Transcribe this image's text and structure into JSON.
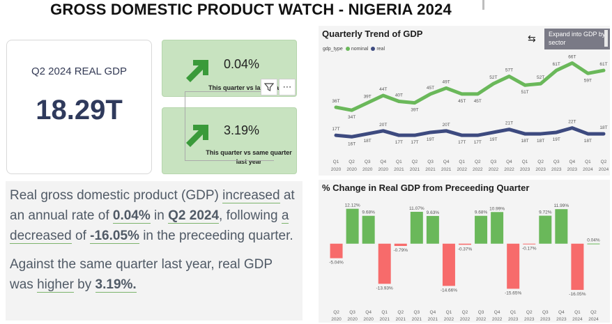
{
  "title": "GROSS DOMESTIC PRODUCT WATCH - NIGERIA 2024",
  "kpi": {
    "label": "Q2 2024 REAL GDP",
    "value": "18.29T"
  },
  "delta_cards": [
    {
      "value": "0.04%",
      "sub": "This quarter vs last quarter",
      "arrow": "arrow-up-right-icon"
    },
    {
      "value": "3.19%",
      "sub": "This quarter vs same quarter last year",
      "arrow": "arrow-up-right-icon"
    }
  ],
  "visual_icons": {
    "filter": "filter-icon",
    "more": "more-options-icon"
  },
  "narrative": {
    "p1": {
      "a": "Real gross domestic product (GDP) ",
      "b": "increased",
      "c": " at an annual rate of ",
      "d": "0.04%",
      "e": " in ",
      "f": "Q2 2024",
      "g": ", following ",
      "h": "a decreased",
      "i": " of ",
      "j": "-16.05%",
      "k": " in the preceeding quarter."
    },
    "p2": {
      "a": "Against the same quarter last year, real GDP was ",
      "b": "higher",
      "c": " by ",
      "d": "3.19%."
    }
  },
  "chart1_header": {
    "title": "Quarterly Trend of GDP",
    "legend_title": "gdp_type",
    "legend": [
      {
        "name": "nominal",
        "color": "#6ab85a"
      },
      {
        "name": "real",
        "color": "#3d4a7f"
      }
    ],
    "expand_label": "Expand into GDP by sector",
    "drill_icon": "drill-arrows-icon"
  },
  "chart2_header": {
    "title": "% Change in Real GDP from Preceeding Quarter"
  },
  "chart_data": [
    {
      "type": "line",
      "title": "Quarterly Trend of GDP",
      "x": [
        [
          "Q1",
          "2020"
        ],
        [
          "Q2",
          "2020"
        ],
        [
          "Q3",
          "2020"
        ],
        [
          "Q4",
          "2020"
        ],
        [
          "Q1",
          "2021"
        ],
        [
          "Q2",
          "2021"
        ],
        [
          "Q3",
          "2021"
        ],
        [
          "Q4",
          "2021"
        ],
        [
          "Q1",
          "2022"
        ],
        [
          "Q2",
          "2022"
        ],
        [
          "Q3",
          "2022"
        ],
        [
          "Q4",
          "2022"
        ],
        [
          "Q1",
          "2023"
        ],
        [
          "Q2",
          "2023"
        ],
        [
          "Q3",
          "2023"
        ],
        [
          "Q4",
          "2023"
        ],
        [
          "Q1",
          "2024"
        ],
        [
          "Q2",
          "2024"
        ]
      ],
      "series": [
        {
          "name": "nominal",
          "color": "#6ab85a",
          "values": [
            36,
            34,
            39,
            44,
            40,
            39,
            45,
            49,
            45,
            45,
            52,
            57,
            51,
            52,
            61,
            66,
            59,
            61
          ],
          "labels": [
            "36T",
            "34T",
            "39T",
            "44T",
            "40T",
            "39T",
            "45T",
            "49T",
            "45T",
            "45T",
            "52T",
            "57T",
            "51T",
            "52T",
            "61T",
            "66T",
            "59T",
            "61T"
          ]
        },
        {
          "name": "real",
          "color": "#3d4a7f",
          "values": [
            17,
            16,
            18,
            20,
            17,
            17,
            19,
            20,
            17,
            17,
            19,
            21,
            18,
            18,
            19,
            22,
            18,
            18
          ],
          "labels": [
            "17T",
            "16T",
            "18T",
            "20T",
            "17T",
            "17T",
            "19T",
            "20T",
            "17T",
            "17T",
            "19T",
            "21T",
            "18T",
            "18T",
            "19T",
            "22T",
            "18T",
            "18T"
          ]
        }
      ],
      "ylim": [
        10,
        70
      ]
    },
    {
      "type": "bar",
      "title": "% Change in Real GDP from Preceeding Quarter",
      "categories": [
        [
          "Q2",
          "2020"
        ],
        [
          "Q3",
          "2020"
        ],
        [
          "Q4",
          "2020"
        ],
        [
          "Q1",
          "2021"
        ],
        [
          "Q2",
          "2021"
        ],
        [
          "Q3",
          "2021"
        ],
        [
          "Q4",
          "2021"
        ],
        [
          "Q1",
          "2022"
        ],
        [
          "Q2",
          "2022"
        ],
        [
          "Q3",
          "2022"
        ],
        [
          "Q4",
          "2022"
        ],
        [
          "Q1",
          "2023"
        ],
        [
          "Q2",
          "2023"
        ],
        [
          "Q3",
          "2023"
        ],
        [
          "Q4",
          "2023"
        ],
        [
          "Q1",
          "2024"
        ],
        [
          "Q2",
          "2024"
        ]
      ],
      "values": [
        -5.04,
        12.12,
        9.68,
        -13.93,
        -0.79,
        11.07,
        9.63,
        -14.66,
        -0.37,
        9.68,
        10.99,
        -15.65,
        -0.17,
        9.72,
        11.99,
        -16.05,
        0.04
      ],
      "labels": [
        "-5.04%",
        "12.12%",
        "9.68%",
        "-13.93%",
        "-0.79%",
        "11.07%",
        "9.63%",
        "-14.66%",
        "-0.37%",
        "9.68%",
        "10.99%",
        "-15.65%",
        "-0.17%",
        "9.72%",
        "11.99%",
        "-16.05%",
        "0.04%"
      ],
      "positive_color": "#6ab85a",
      "negative_color": "#f76b6b",
      "ylim": [
        -17,
        13
      ]
    }
  ]
}
